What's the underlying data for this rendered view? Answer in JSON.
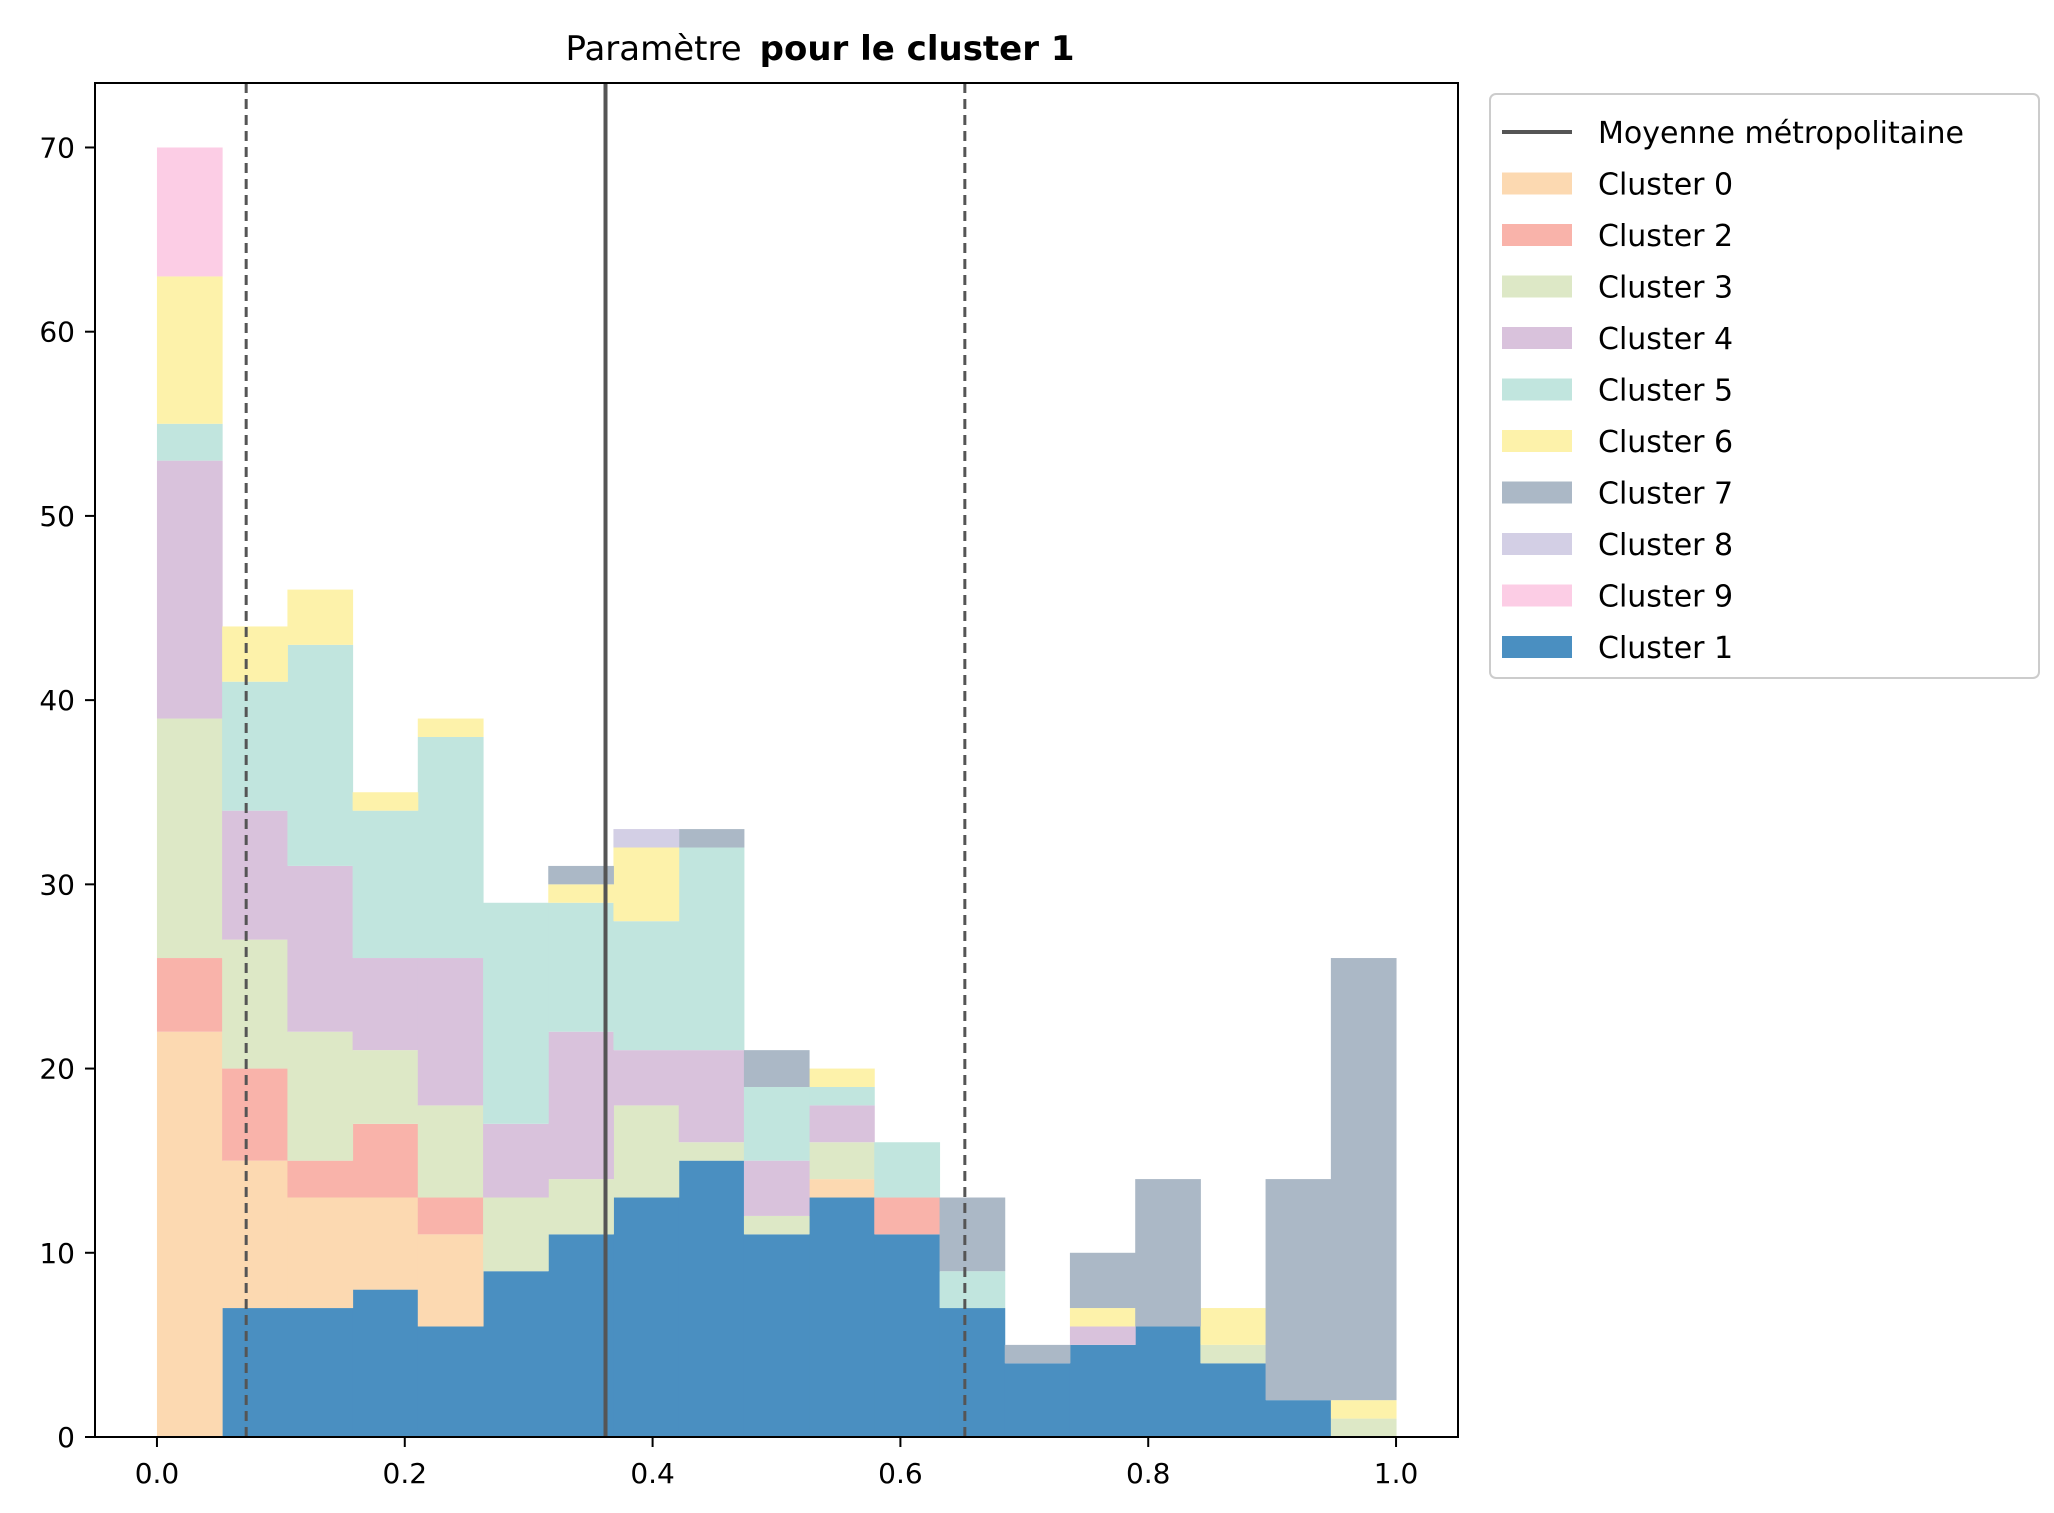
{
  "chart_data": {
    "type": "bar",
    "title_prefix": "Paramètre",
    "title_bold": "pour le cluster 1",
    "xlabel": "",
    "ylabel": "",
    "xlim": [
      -0.05,
      1.05
    ],
    "ylim": [
      0,
      73.5
    ],
    "xticks": [
      "0.0",
      "0.2",
      "0.4",
      "0.6",
      "0.8",
      "1.0"
    ],
    "yticks": [
      "0",
      "10",
      "20",
      "30",
      "40",
      "50",
      "60",
      "70"
    ],
    "grid": false,
    "legend_position": "outside-top-right",
    "bin_edges": [
      0.0,
      0.0526,
      0.1053,
      0.1579,
      0.2105,
      0.2632,
      0.3158,
      0.3684,
      0.4211,
      0.4737,
      0.5263,
      0.5789,
      0.6316,
      0.6842,
      0.7368,
      0.7895,
      0.8421,
      0.8947,
      0.9474,
      1.0
    ],
    "reference_lines": [
      {
        "name": "Moyenne métropolitaine",
        "x": 0.362,
        "style": "solid",
        "color": "#555555"
      },
      {
        "x": 0.072,
        "style": "dashed",
        "color": "#555555"
      },
      {
        "x": 0.652,
        "style": "dashed",
        "color": "#555555"
      }
    ],
    "series": [
      {
        "name": "Cluster 1",
        "color": "#4a8fc1",
        "values": [
          0,
          7,
          7,
          8,
          6,
          9,
          11,
          13,
          15,
          11,
          13,
          11,
          7,
          4,
          5,
          6,
          4,
          2,
          0
        ]
      },
      {
        "name": "Cluster 0",
        "color": "#fcd9b1",
        "values": [
          22,
          8,
          6,
          5,
          5,
          0,
          0,
          0,
          0,
          0,
          1,
          0,
          0,
          0,
          0,
          0,
          0,
          0,
          0
        ]
      },
      {
        "name": "Cluster 2",
        "color": "#f9b3aa",
        "values": [
          4,
          5,
          2,
          4,
          2,
          0,
          0,
          0,
          0,
          0,
          0,
          2,
          0,
          0,
          0,
          0,
          0,
          0,
          0
        ]
      },
      {
        "name": "Cluster 3",
        "color": "#dde8c6",
        "values": [
          13,
          7,
          7,
          4,
          5,
          4,
          3,
          5,
          1,
          1,
          2,
          0,
          0,
          0,
          0,
          0,
          1,
          0,
          1
        ]
      },
      {
        "name": "Cluster 4",
        "color": "#d9c2dc",
        "values": [
          14,
          7,
          9,
          5,
          8,
          4,
          8,
          3,
          5,
          3,
          2,
          0,
          0,
          0,
          1,
          0,
          0,
          0,
          0
        ]
      },
      {
        "name": "Cluster 5",
        "color": "#c1e5de",
        "values": [
          2,
          7,
          12,
          8,
          12,
          12,
          7,
          7,
          11,
          4,
          1,
          3,
          2,
          0,
          0,
          0,
          0,
          0,
          0
        ]
      },
      {
        "name": "Cluster 6",
        "color": "#fdf2aa",
        "values": [
          8,
          3,
          3,
          1,
          1,
          0,
          1,
          4,
          0,
          0,
          1,
          0,
          0,
          0,
          1,
          0,
          2,
          0,
          1
        ]
      },
      {
        "name": "Cluster 7",
        "color": "#abb8c6",
        "values": [
          0,
          0,
          0,
          0,
          0,
          0,
          1,
          0,
          1,
          2,
          0,
          0,
          4,
          1,
          3,
          8,
          0,
          12,
          24
        ]
      },
      {
        "name": "Cluster 8",
        "color": "#d3cfe5",
        "values": [
          0,
          0,
          0,
          0,
          0,
          0,
          0,
          1,
          0,
          0,
          0,
          0,
          0,
          0,
          0,
          0,
          0,
          0,
          0
        ]
      },
      {
        "name": "Cluster 9",
        "color": "#fccde5",
        "values": [
          7,
          0,
          0,
          0,
          0,
          0,
          0,
          0,
          0,
          0,
          0,
          0,
          0,
          0,
          0,
          0,
          0,
          0,
          0
        ]
      }
    ],
    "stack_order": [
      "Cluster 1",
      "Cluster 0",
      "Cluster 2",
      "Cluster 3",
      "Cluster 4",
      "Cluster 5",
      "Cluster 6",
      "Cluster 7",
      "Cluster 8",
      "Cluster 9"
    ],
    "legend_entries": [
      {
        "label": "Moyenne métropolitaine",
        "kind": "line",
        "color": "#555555"
      },
      {
        "label": "Cluster 0",
        "kind": "patch",
        "color": "#fcd9b1"
      },
      {
        "label": "Cluster 2",
        "kind": "patch",
        "color": "#f9b3aa"
      },
      {
        "label": "Cluster 3",
        "kind": "patch",
        "color": "#dde8c6"
      },
      {
        "label": "Cluster 4",
        "kind": "patch",
        "color": "#d9c2dc"
      },
      {
        "label": "Cluster 5",
        "kind": "patch",
        "color": "#c1e5de"
      },
      {
        "label": "Cluster 6",
        "kind": "patch",
        "color": "#fdf2aa"
      },
      {
        "label": "Cluster 7",
        "kind": "patch",
        "color": "#abb8c6"
      },
      {
        "label": "Cluster 8",
        "kind": "patch",
        "color": "#d3cfe5"
      },
      {
        "label": "Cluster 9",
        "kind": "patch",
        "color": "#fccde5"
      },
      {
        "label": "Cluster 1",
        "kind": "patch",
        "color": "#4a8fc1"
      }
    ]
  }
}
